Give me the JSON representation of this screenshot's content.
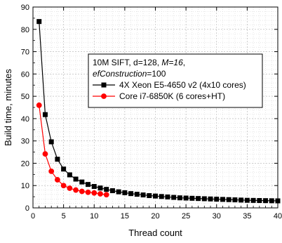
{
  "chart_data": {
    "type": "line",
    "xlabel": "Thread count",
    "ylabel": "Build time, minutes",
    "xlim": [
      0,
      40
    ],
    "ylim": [
      0,
      90
    ],
    "xticks": [
      0,
      5,
      10,
      15,
      20,
      25,
      30,
      35,
      40
    ],
    "yticks": [
      0,
      10,
      20,
      30,
      40,
      50,
      60,
      70,
      80,
      90
    ],
    "grid": true,
    "legend_position": "right",
    "legend_title_lines": [
      [
        {
          "text": "10M SIFT, d=128, ",
          "italic": false
        },
        {
          "text": "M=16",
          "italic": true
        },
        {
          "text": ",",
          "italic": false
        }
      ],
      [
        {
          "text": "efConstruction",
          "italic": true
        },
        {
          "text": "=100",
          "italic": false
        }
      ]
    ],
    "series": [
      {
        "name": "4X Xeon E5-4650 v2 (4x10 cores)",
        "color": "#000000",
        "marker": "square",
        "x": [
          1,
          2,
          3,
          4,
          5,
          6,
          7,
          8,
          9,
          10,
          11,
          12,
          13,
          14,
          15,
          16,
          17,
          18,
          19,
          20,
          21,
          22,
          23,
          24,
          25,
          26,
          27,
          28,
          29,
          30,
          31,
          32,
          33,
          34,
          35,
          36,
          37,
          38,
          39,
          40
        ],
        "y": [
          83.5,
          41.8,
          29.6,
          21.8,
          17.4,
          14.8,
          12.9,
          11.6,
          10.5,
          9.6,
          8.9,
          8.3,
          7.7,
          7.2,
          6.8,
          6.4,
          6.1,
          5.8,
          5.5,
          5.3,
          5.1,
          4.9,
          4.7,
          4.5,
          4.4,
          4.3,
          4.2,
          4.1,
          4.0,
          3.9,
          3.8,
          3.7,
          3.6,
          3.5,
          3.4,
          3.35,
          3.3,
          3.25,
          3.2,
          3.15
        ]
      },
      {
        "name": "Core i7-6850K (6 cores+HT)",
        "color": "#ff0000",
        "marker": "circle",
        "x": [
          1,
          2,
          3,
          4,
          5,
          6,
          7,
          8,
          9,
          10,
          11,
          12
        ],
        "y": [
          46.0,
          24.2,
          16.4,
          12.6,
          10.0,
          8.8,
          8.0,
          7.4,
          7.0,
          6.7,
          6.3,
          5.9
        ]
      }
    ]
  }
}
